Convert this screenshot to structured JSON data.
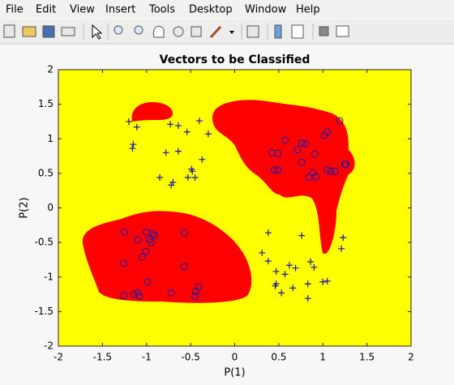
{
  "window": {
    "menu": [
      "File",
      "Edit",
      "View",
      "Insert",
      "Tools",
      "Desktop",
      "Window",
      "Help"
    ]
  },
  "chart_data": {
    "type": "scatter",
    "title": "Vectors to be Classified",
    "xlabel": "P(1)",
    "ylabel": "P(2)",
    "xlim": [
      -2,
      2
    ],
    "ylim": [
      -2,
      2
    ],
    "xticks": [
      -2,
      -1.5,
      -1,
      -0.5,
      0,
      0.5,
      1,
      1.5,
      2
    ],
    "yticks": [
      -2,
      -1.5,
      -1,
      -0.5,
      0,
      0.5,
      1,
      1.5,
      2
    ],
    "series": [
      {
        "marker": "+",
        "color": "#1a1aa6",
        "x": [
          -1.2,
          -1.11,
          -0.73,
          -0.64,
          -0.54,
          -0.4,
          -0.3,
          -1.15,
          -1.16,
          -0.78,
          -0.64,
          -0.37,
          -0.48,
          -0.49,
          -0.85,
          -0.7,
          -0.72,
          -0.53,
          -0.45,
          0.38,
          0.31,
          0.38,
          0.47,
          0.57,
          0.62,
          0.69,
          0.76,
          0.86,
          0.9,
          0.47,
          0.46,
          0.53,
          0.66,
          0.83,
          1.05,
          1.0,
          1.23,
          1.21,
          0.83
        ],
        "values": [
          1.25,
          1.17,
          1.21,
          1.19,
          1.1,
          1.26,
          1.07,
          0.92,
          0.86,
          0.8,
          0.82,
          0.7,
          0.53,
          0.56,
          0.44,
          0.37,
          0.33,
          0.44,
          0.44,
          -0.36,
          -0.65,
          -0.77,
          -0.92,
          -0.96,
          -0.83,
          -0.87,
          -0.4,
          -0.78,
          -0.86,
          -1.1,
          -1.13,
          -1.23,
          -1.16,
          -1.1,
          -1.06,
          -1.07,
          -0.43,
          -0.59,
          -1.31
        ]
      },
      {
        "marker": "o",
        "color": "#1a1aa6",
        "x": [
          0.42,
          0.49,
          0.57,
          0.71,
          0.8,
          0.76,
          0.91,
          0.76,
          0.45,
          0.49,
          1.02,
          1.05,
          1.19,
          0.89,
          0.84,
          0.92,
          1.05,
          1.14,
          1.09,
          1.25,
          1.26,
          -1.25,
          -1.0,
          -0.93,
          -1.1,
          -0.97,
          -0.91,
          -0.95,
          -1.01,
          -1.05,
          -0.57,
          -1.26,
          -0.57,
          -0.99,
          -1.1,
          -1.14,
          -1.08,
          -1.26,
          -0.72,
          -0.41,
          -0.44,
          -0.45
        ],
        "values": [
          0.8,
          0.79,
          0.98,
          0.84,
          0.93,
          0.94,
          0.78,
          0.66,
          0.55,
          0.55,
          1.05,
          1.1,
          1.26,
          0.51,
          0.44,
          0.45,
          0.55,
          0.53,
          0.53,
          0.63,
          0.63,
          -0.35,
          -0.35,
          -0.37,
          -0.46,
          -0.46,
          -0.4,
          -0.5,
          -0.63,
          -0.71,
          -0.36,
          -0.8,
          -0.85,
          -1.07,
          -1.23,
          -1.25,
          -1.28,
          -1.27,
          -1.23,
          -1.14,
          -1.21,
          -1.28
        ]
      }
    ]
  }
}
